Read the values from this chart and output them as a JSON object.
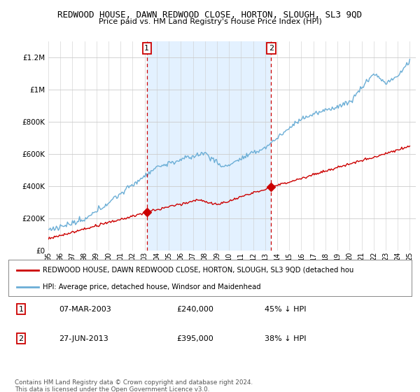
{
  "title": "REDWOOD HOUSE, DAWN REDWOOD CLOSE, HORTON, SLOUGH, SL3 9QD",
  "subtitle": "Price paid vs. HM Land Registry's House Price Index (HPI)",
  "ylabel_ticks": [
    "£0",
    "£200K",
    "£400K",
    "£600K",
    "£800K",
    "£1M",
    "£1.2M"
  ],
  "ytick_values": [
    0,
    200000,
    400000,
    600000,
    800000,
    1000000,
    1200000
  ],
  "ylim": [
    0,
    1300000
  ],
  "xlim_start": 1995,
  "xlim_end": 2025.5,
  "sale1_year": 2003.18,
  "sale1_price": 240000,
  "sale2_year": 2013.49,
  "sale2_price": 395000,
  "hpi_color": "#6baed6",
  "price_color": "#cc0000",
  "vline_color": "#cc0000",
  "shade_color": "#ddeeff",
  "legend_label_price": "REDWOOD HOUSE, DAWN REDWOOD CLOSE, HORTON, SLOUGH, SL3 9QD (detached hou",
  "legend_label_hpi": "HPI: Average price, detached house, Windsor and Maidenhead",
  "table_row1": [
    "1",
    "07-MAR-2003",
    "£240,000",
    "45% ↓ HPI"
  ],
  "table_row2": [
    "2",
    "27-JUN-2013",
    "£395,000",
    "38% ↓ HPI"
  ],
  "footnote": "Contains HM Land Registry data © Crown copyright and database right 2024.\nThis data is licensed under the Open Government Licence v3.0.",
  "background_color": "#ffffff",
  "plot_bg_color": "#ffffff"
}
